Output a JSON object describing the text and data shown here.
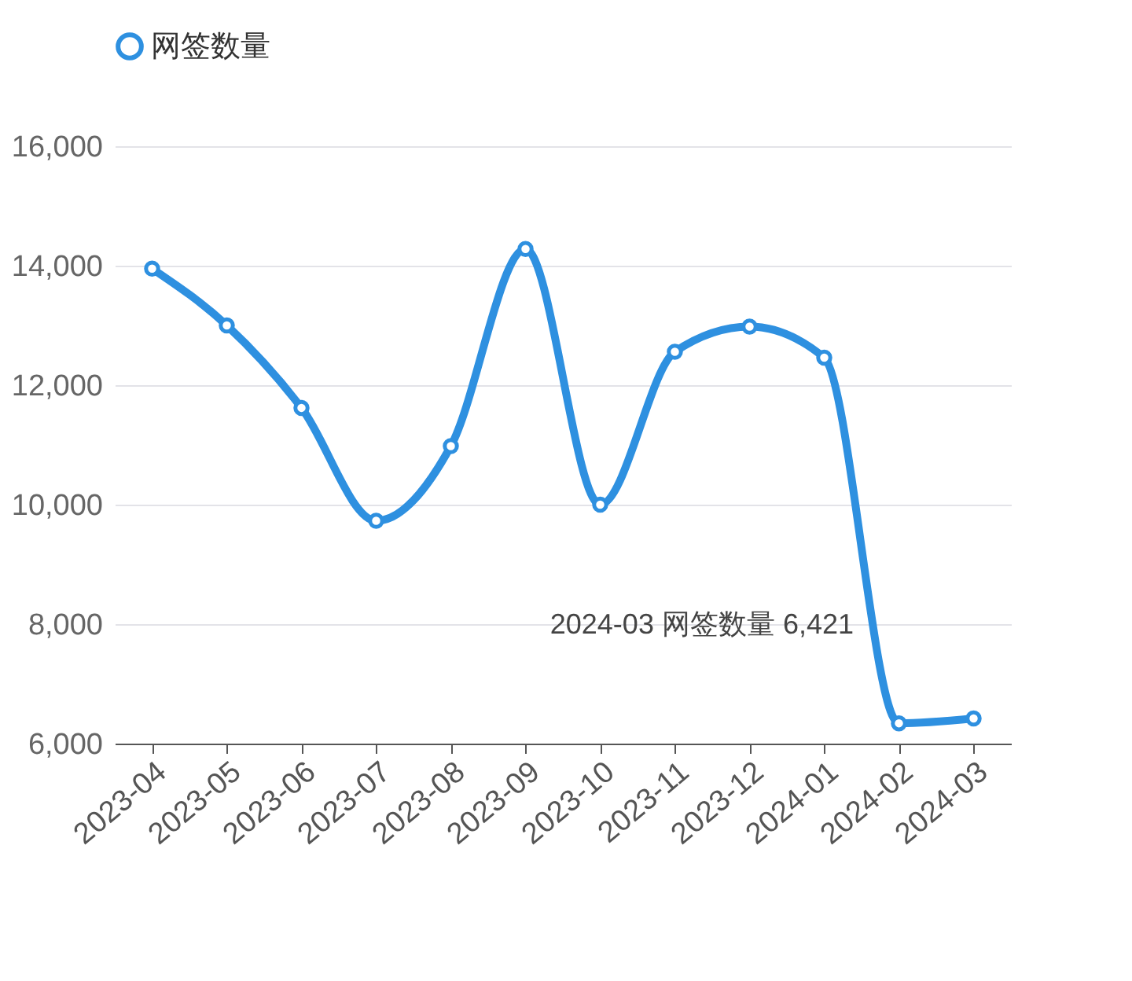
{
  "chart_data": {
    "type": "line",
    "categories": [
      "2023-04",
      "2023-05",
      "2023-06",
      "2023-07",
      "2023-08",
      "2023-09",
      "2023-10",
      "2023-11",
      "2023-12",
      "2024-01",
      "2024-02",
      "2024-03"
    ],
    "series": [
      {
        "name": "网签数量",
        "color": "#2e90e0",
        "values": [
          13950,
          13000,
          11620,
          9730,
          10980,
          14280,
          10000,
          12560,
          12980,
          12460,
          6340,
          6421
        ]
      }
    ],
    "ylim": [
      6000,
      16000
    ],
    "yticks": [
      {
        "value": 6000,
        "label": "6,000"
      },
      {
        "value": 8000,
        "label": "8,000"
      },
      {
        "value": 10000,
        "label": "10,000"
      },
      {
        "value": 12000,
        "label": "12,000"
      },
      {
        "value": 14000,
        "label": "14,000"
      },
      {
        "value": 16000,
        "label": "16,000"
      }
    ],
    "grid": "y",
    "legend": "top",
    "marker": "circle",
    "line_style": "solid",
    "annotations": [
      "2024-03 网签数量 6,421"
    ]
  }
}
